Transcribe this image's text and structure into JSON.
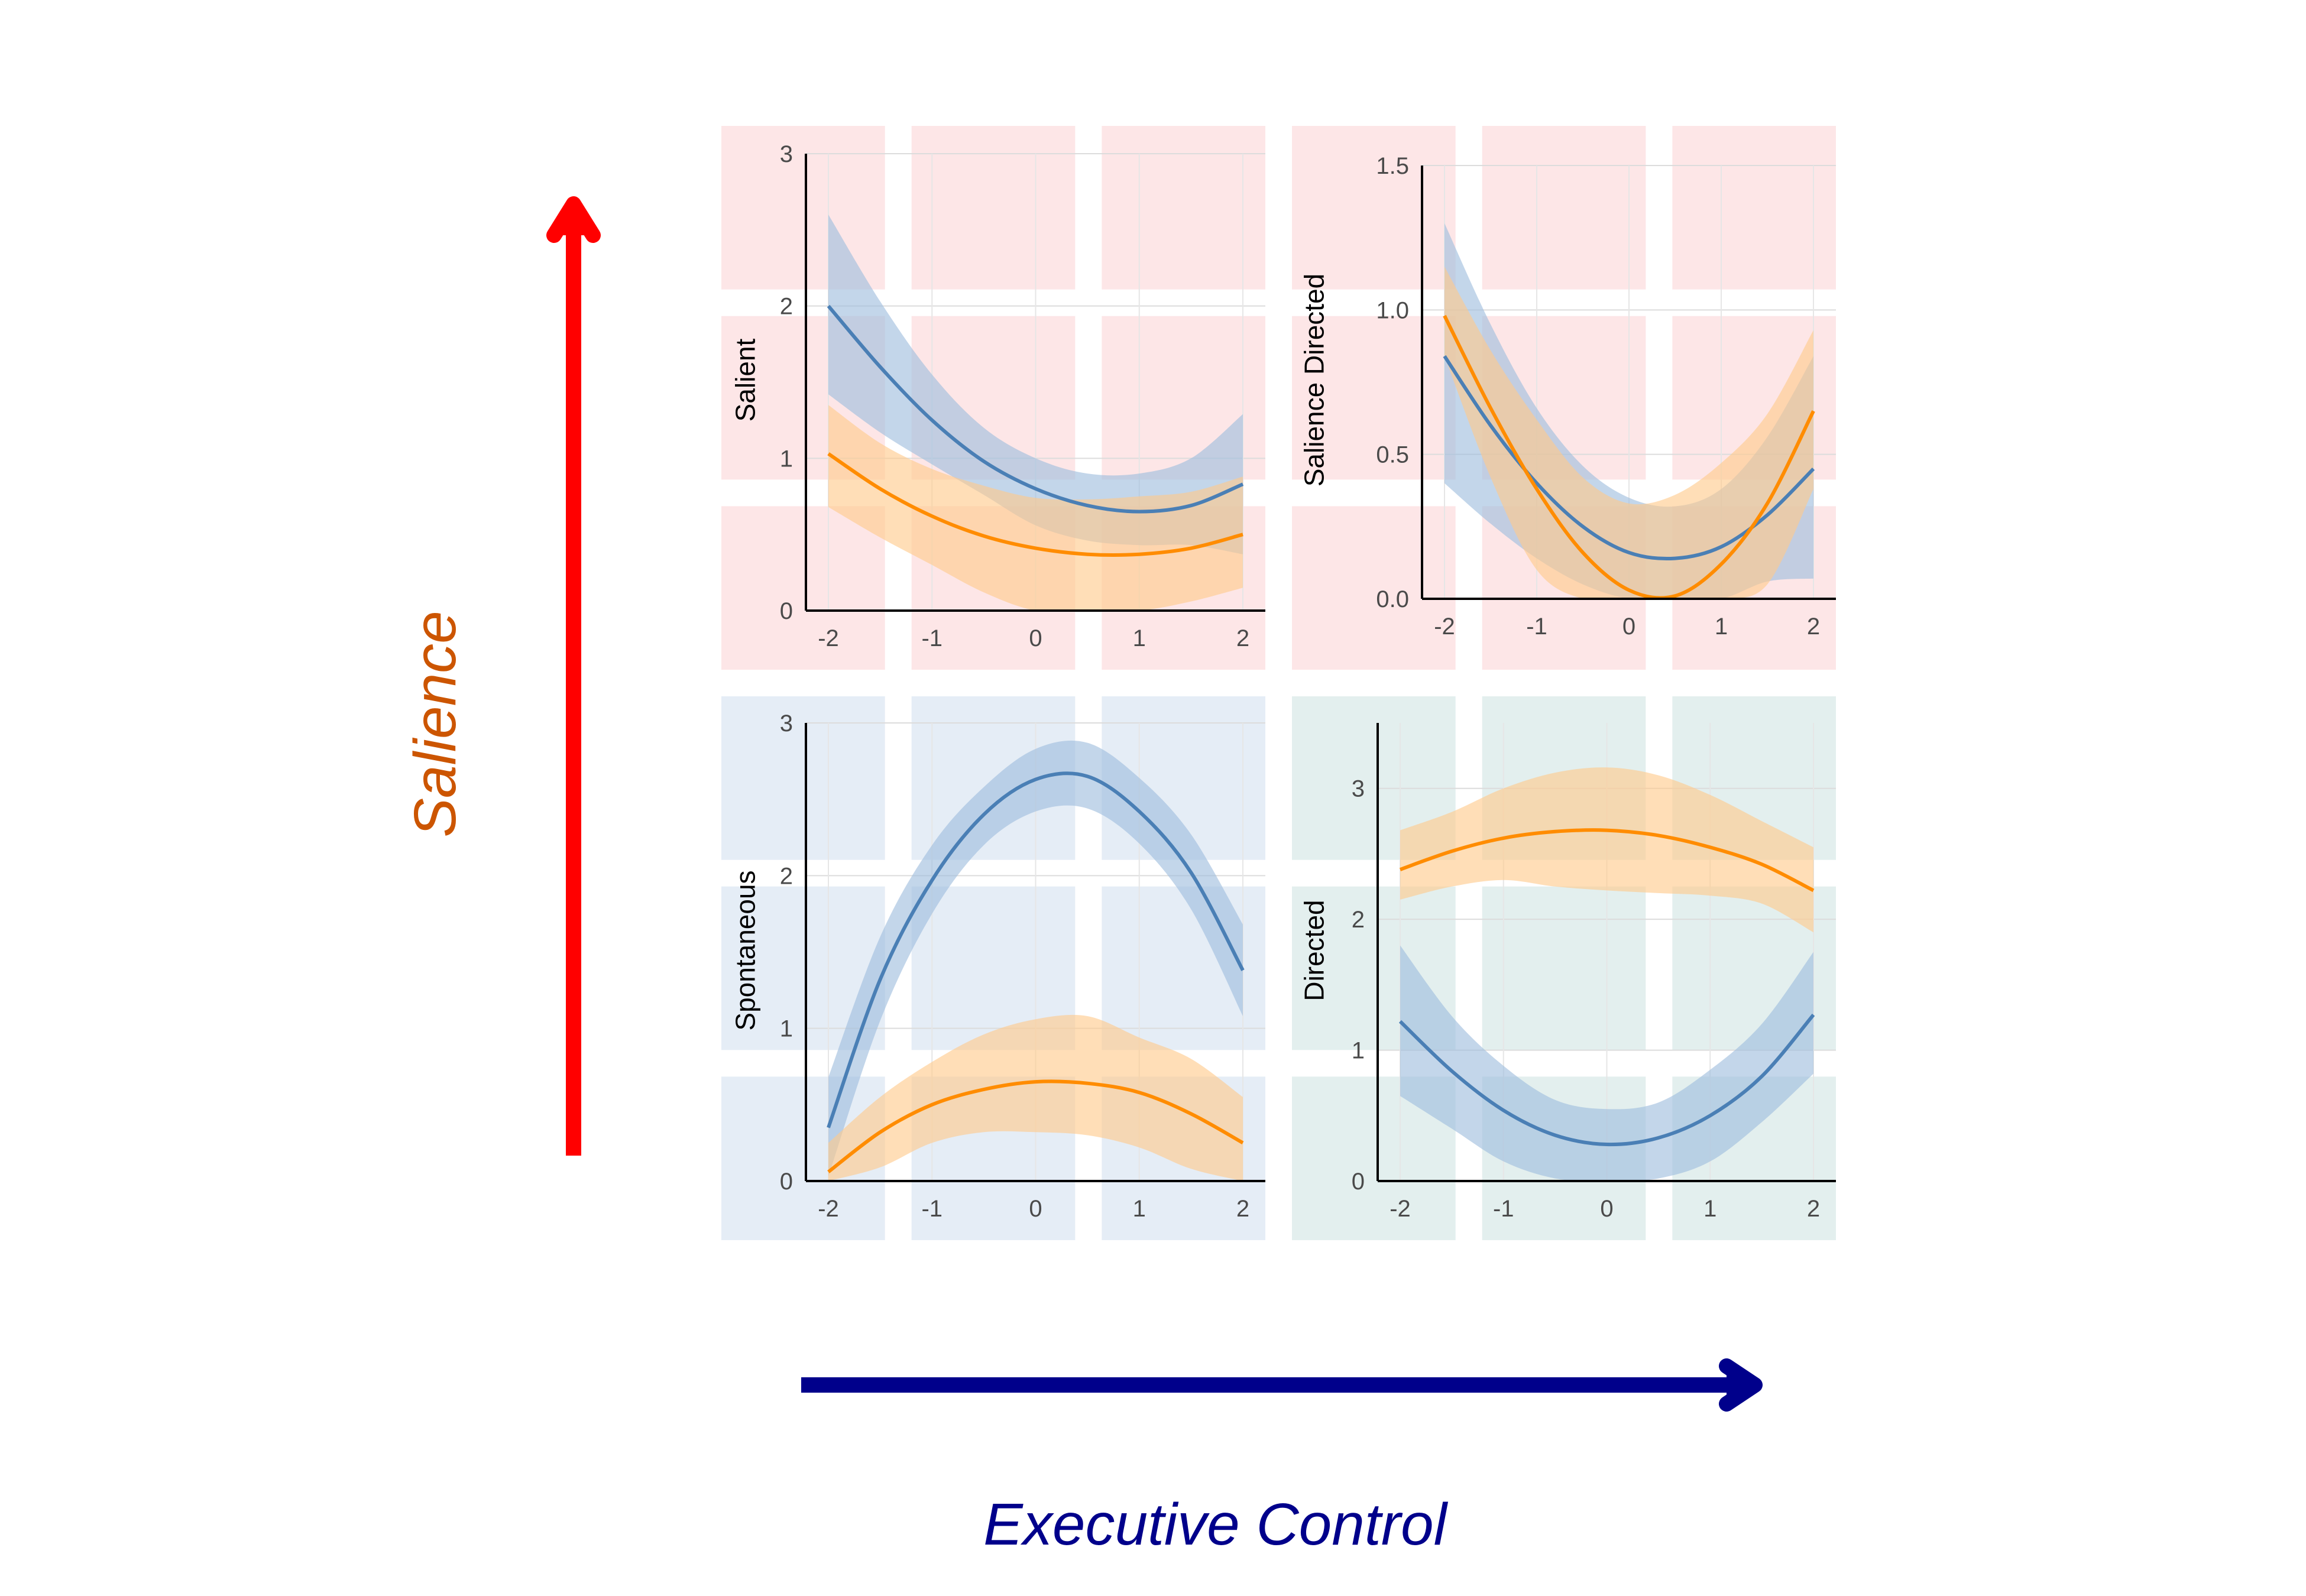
{
  "figure": {
    "y_axis_label": "Salience",
    "x_axis_label": "Executive Control",
    "colors": {
      "salience_arrow": "#ff0000",
      "salience_label": "#cc5500",
      "executive_arrow": "#00008b",
      "executive_label": "#00008b",
      "series_blue": "#4a7fb5",
      "series_orange": "#ff8c00",
      "band_blue": "#9ebddd",
      "band_orange": "#ffc98a",
      "tile_red": "#fde6e7",
      "tile_blue": "#e5edf6",
      "tile_teal": "#e3efee"
    }
  },
  "chart_data": [
    {
      "id": "salient",
      "type": "line",
      "ylabel": "Salient",
      "xlim": [
        -2,
        2
      ],
      "ylim": [
        0,
        3
      ],
      "xticks": [
        "-2",
        "-1",
        "0",
        "1",
        "2"
      ],
      "yticks": [
        "0",
        "1",
        "2",
        "3"
      ],
      "ytick_values": [
        0,
        1,
        2,
        3
      ],
      "tile_color": "tile_red",
      "series": [
        {
          "color": "blue",
          "x": [
            -2,
            -1.5,
            -1,
            -0.5,
            0,
            0.5,
            1,
            1.5,
            2
          ],
          "y": [
            2.0,
            1.6,
            1.25,
            0.98,
            0.8,
            0.69,
            0.65,
            0.69,
            0.83
          ],
          "lower": [
            1.42,
            1.17,
            0.96,
            0.76,
            0.56,
            0.46,
            0.43,
            0.43,
            0.37
          ],
          "upper": [
            2.6,
            2.03,
            1.55,
            1.2,
            1.0,
            0.9,
            0.9,
            1.0,
            1.29
          ]
        },
        {
          "color": "orange",
          "x": [
            -2,
            -1.5,
            -1,
            -0.5,
            0,
            0.5,
            1,
            1.5,
            2
          ],
          "y": [
            1.03,
            0.8,
            0.62,
            0.49,
            0.41,
            0.37,
            0.37,
            0.41,
            0.5
          ],
          "lower": [
            0.68,
            0.48,
            0.3,
            0.12,
            0.0,
            0.0,
            0.0,
            0.06,
            0.15
          ],
          "upper": [
            1.35,
            1.1,
            0.93,
            0.82,
            0.74,
            0.73,
            0.75,
            0.78,
            0.88
          ]
        }
      ]
    },
    {
      "id": "salience-directed",
      "type": "line",
      "ylabel": "Salience Directed",
      "xlim": [
        -2,
        2
      ],
      "ylim": [
        0,
        1.5
      ],
      "xticks": [
        "-2",
        "-1",
        "0",
        "1",
        "2"
      ],
      "yticks": [
        "0.0",
        "0.5",
        "1.0",
        "1.5"
      ],
      "ytick_values": [
        0,
        0.5,
        1.0,
        1.5
      ],
      "tile_color": "tile_red",
      "series": [
        {
          "color": "blue",
          "x": [
            -2,
            -1.5,
            -1,
            -0.5,
            0,
            0.5,
            1,
            1.5,
            2
          ],
          "y": [
            0.84,
            0.6,
            0.4,
            0.25,
            0.16,
            0.14,
            0.18,
            0.29,
            0.45
          ],
          "lower": [
            0.4,
            0.26,
            0.14,
            0.05,
            0.0,
            0.0,
            0.0,
            0.06,
            0.07
          ],
          "upper": [
            1.3,
            0.95,
            0.66,
            0.46,
            0.35,
            0.32,
            0.38,
            0.56,
            0.84
          ]
        },
        {
          "color": "orange",
          "x": [
            -2,
            -1.5,
            -1,
            -0.5,
            0,
            0.5,
            1,
            1.5,
            2
          ],
          "y": [
            0.98,
            0.66,
            0.38,
            0.16,
            0.03,
            0.01,
            0.12,
            0.33,
            0.65
          ],
          "lower": [
            0.84,
            0.42,
            0.1,
            0.0,
            0.0,
            0.0,
            0.0,
            0.05,
            0.38
          ],
          "upper": [
            1.15,
            0.86,
            0.62,
            0.42,
            0.33,
            0.36,
            0.47,
            0.64,
            0.93
          ]
        }
      ]
    },
    {
      "id": "spontaneous",
      "type": "line",
      "ylabel": "Spontaneous",
      "xlim": [
        -2,
        2
      ],
      "ylim": [
        0,
        3
      ],
      "xticks": [
        "-2",
        "-1",
        "0",
        "1",
        "2"
      ],
      "yticks": [
        "0",
        "1",
        "2",
        "3"
      ],
      "ytick_values": [
        0,
        1,
        2,
        3
      ],
      "tile_color": "tile_blue",
      "series": [
        {
          "color": "blue",
          "x": [
            -2,
            -1.5,
            -1,
            -0.5,
            0,
            0.5,
            1,
            1.5,
            2
          ],
          "y": [
            0.35,
            1.32,
            1.97,
            2.4,
            2.63,
            2.65,
            2.42,
            2.02,
            1.38
          ],
          "lower": [
            0.03,
            1.05,
            1.75,
            2.2,
            2.42,
            2.44,
            2.21,
            1.78,
            1.08
          ],
          "upper": [
            0.68,
            1.6,
            2.2,
            2.58,
            2.83,
            2.87,
            2.64,
            2.27,
            1.68
          ]
        },
        {
          "color": "orange",
          "x": [
            -2,
            -1.5,
            -1,
            -0.5,
            0,
            0.5,
            1,
            1.5,
            2
          ],
          "y": [
            0.06,
            0.32,
            0.5,
            0.6,
            0.65,
            0.64,
            0.58,
            0.44,
            0.25
          ],
          "lower": [
            0.0,
            0.09,
            0.25,
            0.32,
            0.32,
            0.3,
            0.22,
            0.08,
            0.0
          ],
          "upper": [
            0.25,
            0.55,
            0.78,
            0.96,
            1.06,
            1.08,
            0.94,
            0.8,
            0.55
          ]
        }
      ]
    },
    {
      "id": "directed",
      "type": "line",
      "ylabel": "Directed",
      "xlim": [
        -2,
        2
      ],
      "ylim": [
        0,
        3.5
      ],
      "xticks": [
        "-2",
        "-1",
        "0",
        "1",
        "2"
      ],
      "yticks": [
        "0",
        "1",
        "2",
        "3"
      ],
      "ytick_values": [
        0,
        1,
        2,
        3
      ],
      "tile_color": "tile_teal",
      "series": [
        {
          "color": "blue",
          "x": [
            -2,
            -1.5,
            -1,
            -0.5,
            0,
            0.5,
            1,
            1.5,
            2
          ],
          "y": [
            1.22,
            0.84,
            0.54,
            0.35,
            0.28,
            0.33,
            0.5,
            0.8,
            1.27
          ],
          "lower": [
            0.65,
            0.4,
            0.15,
            0.02,
            0.0,
            0.02,
            0.15,
            0.45,
            0.82
          ],
          "upper": [
            1.8,
            1.26,
            0.88,
            0.62,
            0.55,
            0.6,
            0.85,
            1.2,
            1.75
          ]
        },
        {
          "color": "orange",
          "x": [
            -2,
            -1.5,
            -1,
            -0.5,
            0,
            0.5,
            1,
            1.5,
            2
          ],
          "y": [
            2.38,
            2.52,
            2.62,
            2.67,
            2.68,
            2.64,
            2.55,
            2.42,
            2.22
          ],
          "lower": [
            2.15,
            2.25,
            2.3,
            2.25,
            2.22,
            2.2,
            2.18,
            2.12,
            1.9
          ],
          "upper": [
            2.68,
            2.82,
            3.0,
            3.12,
            3.16,
            3.1,
            2.95,
            2.75,
            2.55
          ]
        }
      ]
    }
  ]
}
